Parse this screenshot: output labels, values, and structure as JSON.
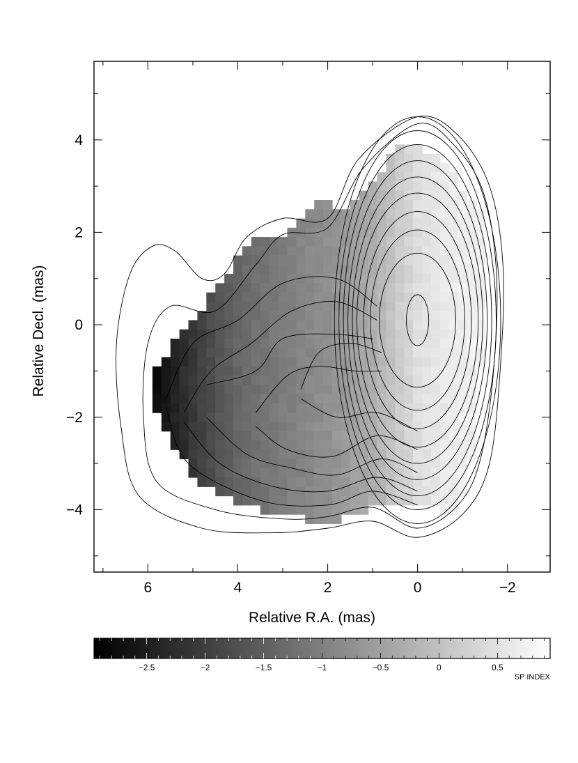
{
  "chart_data": {
    "type": "heatmap",
    "title": "",
    "xlabel": "Relative R.A. (mas)",
    "ylabel": "Relative Decl. (mas)",
    "xlim": [
      7.2,
      -2.95
    ],
    "ylim": [
      -5.35,
      5.7
    ],
    "x_axis_reversed": true,
    "x_ticks": [
      6,
      4,
      2,
      0,
      -2
    ],
    "x_tick_labels": [
      "6",
      "4",
      "2",
      "0",
      "−2"
    ],
    "y_ticks": [
      4,
      2,
      0,
      -2,
      -4
    ],
    "y_tick_labels": [
      "4",
      "2",
      "0",
      "−2",
      "−4"
    ],
    "grid": false,
    "colorbar": {
      "label": "SP INDEX",
      "range": [
        -2.95,
        0.95
      ],
      "ticks": [
        -2.5,
        -2,
        -1.5,
        -1,
        -0.5,
        0,
        0.5
      ],
      "tick_labels": [
        "−2.5",
        "−2",
        "−1.5",
        "−1",
        "−0.5",
        "0",
        "0.5"
      ],
      "colormap": "greyscale, black (low) to white (high)"
    },
    "spectral_index_map": {
      "region_boundary_mas": [
        [
          0.3,
          4.0
        ],
        [
          1.5,
          2.5
        ],
        [
          2.2,
          2.7
        ],
        [
          3.0,
          1.9
        ],
        [
          3.7,
          1.9
        ],
        [
          4.4,
          0.9
        ],
        [
          5.5,
          -0.5
        ],
        [
          6.0,
          -1.2
        ],
        [
          5.8,
          -2.0
        ],
        [
          5.0,
          -3.3
        ],
        [
          4.0,
          -3.9
        ],
        [
          3.0,
          -4.1
        ],
        [
          2.0,
          -4.3
        ],
        [
          1.0,
          -4.0
        ],
        [
          -0.5,
          -4.0
        ],
        [
          -0.9,
          -4.1
        ],
        [
          -1.2,
          -3.0
        ],
        [
          -1.5,
          0.0
        ],
        [
          -1.4,
          2.5
        ],
        [
          -0.6,
          3.5
        ]
      ],
      "index_along_ra": [
        [
          6.0,
          -2.9
        ],
        [
          5.5,
          -2.5
        ],
        [
          5.0,
          -2.1
        ],
        [
          4.5,
          -1.7
        ],
        [
          4.0,
          -1.4
        ],
        [
          3.5,
          -1.2
        ],
        [
          3.0,
          -1.05
        ],
        [
          2.5,
          -0.9
        ],
        [
          2.0,
          -0.75
        ],
        [
          1.5,
          -0.55
        ],
        [
          1.0,
          -0.3
        ],
        [
          0.5,
          0.1
        ],
        [
          0.0,
          0.45
        ],
        [
          -0.5,
          0.6
        ],
        [
          -1.0,
          0.7
        ],
        [
          -1.5,
          0.75
        ]
      ]
    },
    "contours": {
      "peak_position_mas": [
        0.0,
        0.1
      ],
      "levels_count": 12,
      "core_ellipse_semi_axes_mas": [
        [
          0.25,
          0.55
        ],
        [
          0.85,
          1.45
        ],
        [
          1.05,
          1.95
        ],
        [
          1.2,
          2.35
        ],
        [
          1.35,
          2.75
        ],
        [
          1.45,
          3.1
        ],
        [
          1.55,
          3.45
        ],
        [
          1.65,
          3.8
        ],
        [
          1.75,
          4.1
        ],
        [
          1.85,
          4.4
        ]
      ],
      "outer_contour_mas": [
        [
          0.0,
          4.5
        ],
        [
          -0.9,
          4.1
        ],
        [
          -1.6,
          3.0
        ],
        [
          -1.9,
          1.3
        ],
        [
          -1.85,
          -0.8
        ],
        [
          -1.6,
          -3.0
        ],
        [
          -1.0,
          -4.1
        ],
        [
          0.0,
          -4.6
        ],
        [
          1.0,
          -4.25
        ],
        [
          2.0,
          -4.4
        ],
        [
          3.2,
          -4.5
        ],
        [
          4.8,
          -4.4
        ],
        [
          6.2,
          -3.7
        ],
        [
          6.6,
          -2.2
        ],
        [
          6.7,
          -0.4
        ],
        [
          6.4,
          1.1
        ],
        [
          5.9,
          1.7
        ],
        [
          5.4,
          1.6
        ],
        [
          4.8,
          1.0
        ],
        [
          4.3,
          1.1
        ],
        [
          3.8,
          1.9
        ],
        [
          3.0,
          2.3
        ],
        [
          2.0,
          2.3
        ],
        [
          1.3,
          3.6
        ]
      ],
      "second_contour_mas": [
        [
          0.0,
          4.35
        ],
        [
          -0.8,
          3.9
        ],
        [
          -1.45,
          2.9
        ],
        [
          -1.75,
          1.2
        ],
        [
          -1.7,
          -0.9
        ],
        [
          -1.4,
          -2.9
        ],
        [
          -0.9,
          -3.9
        ],
        [
          0.0,
          -4.4
        ],
        [
          1.0,
          -3.95
        ],
        [
          2.0,
          -4.15
        ],
        [
          3.0,
          -4.2
        ],
        [
          4.5,
          -4.0
        ],
        [
          5.8,
          -3.4
        ],
        [
          6.1,
          -2.0
        ],
        [
          6.0,
          -0.4
        ],
        [
          5.5,
          0.4
        ],
        [
          4.5,
          0.3
        ],
        [
          3.6,
          1.3
        ],
        [
          3.0,
          1.95
        ],
        [
          2.0,
          2.1
        ],
        [
          1.2,
          3.4
        ]
      ],
      "jet_contours_mas": [
        [
          [
            5.6,
            -1.6
          ],
          [
            5.0,
            -0.4
          ],
          [
            4.0,
            0.1
          ],
          [
            3.0,
            0.9
          ],
          [
            1.8,
            1.0
          ],
          [
            0.9,
            0.4
          ]
        ],
        [
          [
            5.6,
            -1.8
          ],
          [
            5.1,
            -3.0
          ],
          [
            3.5,
            -3.8
          ],
          [
            2.0,
            -3.9
          ],
          [
            1.0,
            -3.6
          ],
          [
            0.0,
            -3.9
          ]
        ],
        [
          [
            5.2,
            -1.9
          ],
          [
            4.6,
            -1.0
          ],
          [
            3.7,
            -0.4
          ],
          [
            2.8,
            0.3
          ],
          [
            1.8,
            0.5
          ],
          [
            0.9,
            0.1
          ]
        ],
        [
          [
            5.2,
            -2.1
          ],
          [
            4.4,
            -3.0
          ],
          [
            3.2,
            -3.5
          ],
          [
            2.0,
            -3.6
          ],
          [
            0.9,
            -3.3
          ],
          [
            0.0,
            -3.6
          ]
        ],
        [
          [
            4.7,
            -1.3
          ],
          [
            3.6,
            -1.0
          ],
          [
            3.0,
            -0.3
          ],
          [
            1.9,
            -0.2
          ],
          [
            1.0,
            -0.3
          ]
        ],
        [
          [
            4.7,
            -2.0
          ],
          [
            3.8,
            -2.8
          ],
          [
            2.8,
            -3.1
          ],
          [
            1.8,
            -3.25
          ],
          [
            0.8,
            -2.9
          ],
          [
            0.0,
            -3.2
          ]
        ],
        [
          [
            3.6,
            -1.9
          ],
          [
            2.9,
            -1.1
          ],
          [
            2.2,
            -0.9
          ],
          [
            1.4,
            -1.0
          ],
          [
            0.8,
            -1.0
          ]
        ],
        [
          [
            3.6,
            -2.2
          ],
          [
            2.9,
            -2.7
          ],
          [
            1.9,
            -2.85
          ],
          [
            0.9,
            -2.4
          ],
          [
            0.0,
            -2.7
          ]
        ],
        [
          [
            2.6,
            -1.4
          ],
          [
            2.2,
            -0.6
          ],
          [
            1.5,
            -0.4
          ],
          [
            0.8,
            -0.6
          ]
        ],
        [
          [
            2.6,
            -1.6
          ],
          [
            1.8,
            -2.0
          ],
          [
            0.9,
            -1.9
          ],
          [
            0.0,
            -2.3
          ]
        ]
      ]
    }
  }
}
